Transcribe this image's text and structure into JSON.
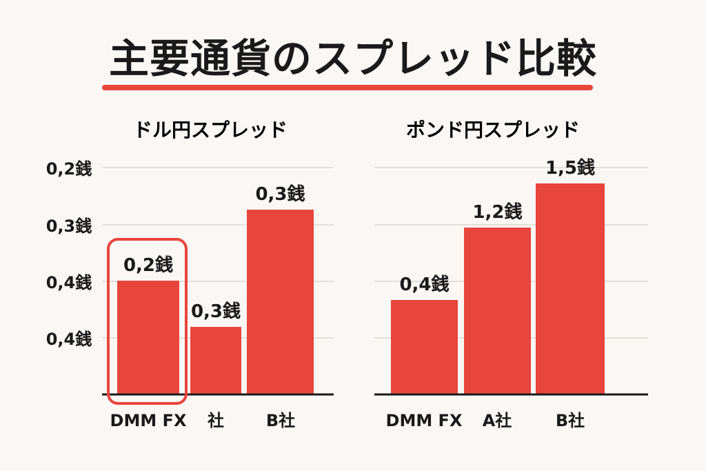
{
  "page": {
    "title": "主要通貨のスプレッド比較",
    "accent_color": "#e8453c",
    "text_color": "#1a1a1a",
    "grid_color": "#e3e0dc"
  },
  "chart_data": [
    {
      "type": "bar",
      "title": "ドル円スプレッド",
      "categories": [
        "DMM FX",
        "社",
        "B社"
      ],
      "values": [
        0.2,
        0.3,
        0.3
      ],
      "value_labels": [
        "0,2銭",
        "0,3銭",
        "0,3銭"
      ],
      "y_tick_labels": [
        "0,2銭",
        "0,3銭",
        "0,4銭",
        "0,4銭"
      ],
      "highlight_category": "DMM FX",
      "grid": true,
      "xlabel": "",
      "ylabel": ""
    },
    {
      "type": "bar",
      "title": "ポンド円スプレッド",
      "categories": [
        "DMM FX",
        "A社",
        "B社"
      ],
      "values": [
        0.4,
        1.2,
        1.5
      ],
      "value_labels": [
        "0,4銭",
        "1,2銭",
        "1,5銭"
      ],
      "grid": true,
      "xlabel": "",
      "ylabel": ""
    }
  ]
}
